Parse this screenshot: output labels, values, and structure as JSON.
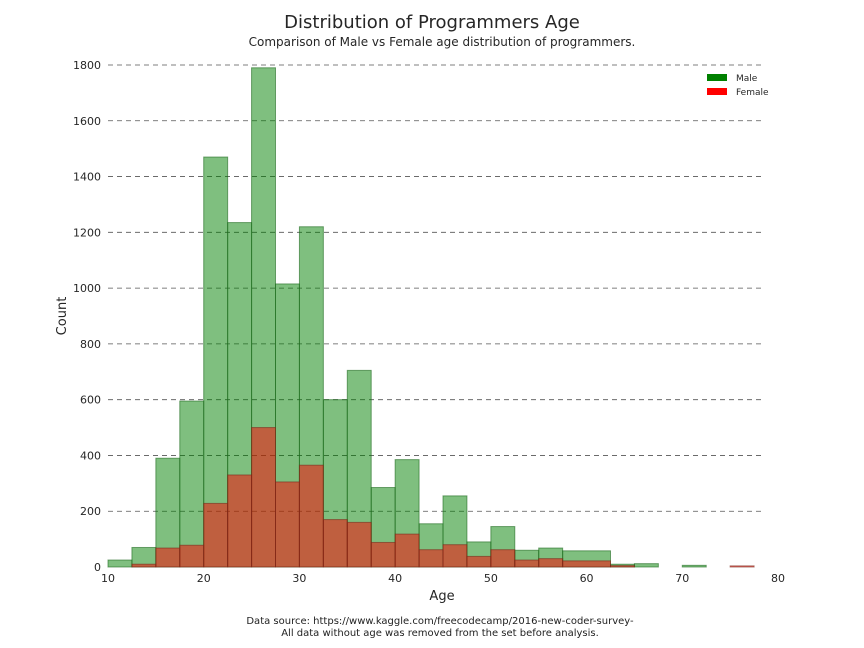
{
  "chart_data": {
    "type": "bar",
    "title": "Distribution of Programmers Age",
    "subtitle": "Comparison of Male vs Female age distribution of programmers.",
    "xlabel": "Age",
    "ylabel": "Count",
    "xlim": [
      10,
      80
    ],
    "ylim": [
      0,
      1800
    ],
    "xticks": [
      "10",
      "20",
      "30",
      "40",
      "50",
      "60",
      "70",
      "80"
    ],
    "yticks": [
      "0",
      "200",
      "400",
      "600",
      "800",
      "1000",
      "1200",
      "1400",
      "1600",
      "1800"
    ],
    "grid": "horizontal dashed",
    "legend_position": "top-right",
    "series": [
      {
        "name": "Male",
        "color": "#008000",
        "bins": [
          [
            10.0,
            12.5,
            25
          ],
          [
            12.5,
            15.0,
            70
          ],
          [
            15.0,
            17.5,
            390
          ],
          [
            17.5,
            20.0,
            595
          ],
          [
            20.0,
            22.5,
            1470
          ],
          [
            22.5,
            25.0,
            1235
          ],
          [
            25.0,
            27.5,
            1790
          ],
          [
            27.5,
            30.0,
            1015
          ],
          [
            30.0,
            32.5,
            1220
          ],
          [
            32.5,
            35.0,
            600
          ],
          [
            35.0,
            37.5,
            705
          ],
          [
            37.5,
            40.0,
            285
          ],
          [
            40.0,
            42.5,
            385
          ],
          [
            42.5,
            45.0,
            155
          ],
          [
            45.0,
            47.5,
            255
          ],
          [
            47.5,
            50.0,
            90
          ],
          [
            50.0,
            52.5,
            145
          ],
          [
            52.5,
            55.0,
            60
          ],
          [
            55.0,
            57.5,
            68
          ],
          [
            57.5,
            62.5,
            58
          ],
          [
            62.5,
            65.0,
            10
          ],
          [
            65.0,
            67.5,
            12
          ],
          [
            70.0,
            72.5,
            6
          ]
        ]
      },
      {
        "name": "Female",
        "color": "#ff0000",
        "bins": [
          [
            12.5,
            15.0,
            10
          ],
          [
            15.0,
            17.5,
            68
          ],
          [
            17.5,
            20.0,
            78
          ],
          [
            20.0,
            22.5,
            228
          ],
          [
            22.5,
            25.0,
            330
          ],
          [
            25.0,
            27.5,
            500
          ],
          [
            27.5,
            30.0,
            305
          ],
          [
            30.0,
            32.5,
            365
          ],
          [
            32.5,
            35.0,
            170
          ],
          [
            35.0,
            37.5,
            160
          ],
          [
            37.5,
            40.0,
            88
          ],
          [
            40.0,
            42.5,
            118
          ],
          [
            42.5,
            45.0,
            62
          ],
          [
            45.0,
            47.5,
            80
          ],
          [
            47.5,
            50.0,
            38
          ],
          [
            50.0,
            52.5,
            62
          ],
          [
            52.5,
            55.0,
            25
          ],
          [
            55.0,
            57.5,
            30
          ],
          [
            57.5,
            62.5,
            22
          ],
          [
            62.5,
            65.0,
            5
          ],
          [
            75.0,
            77.5,
            4
          ]
        ]
      }
    ],
    "footer": [
      "Data source: https://www.kaggle.com/freecodecamp/2016-new-coder-survey-",
      "All data without age was removed from the set before analysis."
    ]
  }
}
